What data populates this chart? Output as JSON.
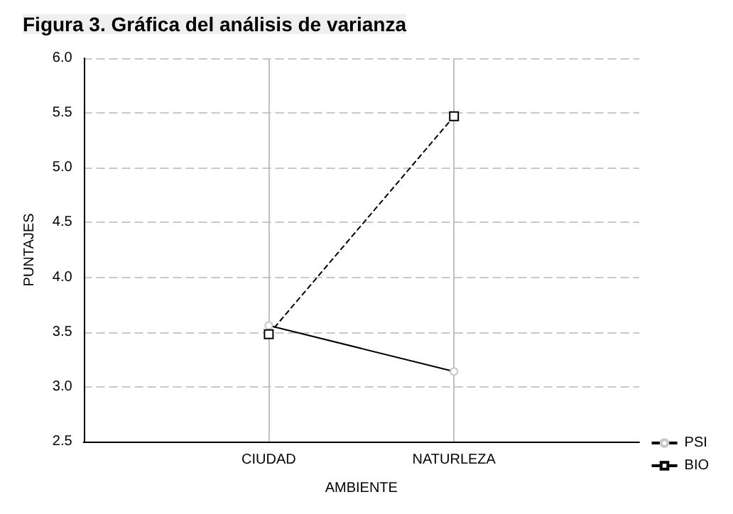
{
  "chart_data": {
    "type": "line",
    "title": "Figura 3. Gráfica del análisis de varianza",
    "xlabel": "AMBIENTE",
    "ylabel": "PUNTAJES",
    "categories": [
      "CIUDAD",
      "NATURLEZA"
    ],
    "series": [
      {
        "name": "PSI",
        "color": "#000000",
        "values": [
          3.56,
          3.14
        ],
        "marker": "circle",
        "line_style": "solid"
      },
      {
        "name": "BIO",
        "color": "#000000",
        "values": [
          3.48,
          5.47
        ],
        "marker": "square",
        "line_style": "dashed"
      }
    ],
    "ylim": [
      2.5,
      6.0
    ],
    "yticks": [
      {
        "value": 2.5,
        "label": "2.5"
      },
      {
        "value": 3,
        "label": "3.0"
      },
      {
        "value": 3.5,
        "label": "3.5"
      },
      {
        "value": 4,
        "label": "4.0"
      },
      {
        "value": 4.5,
        "label": "4.5"
      },
      {
        "value": 5,
        "label": "5.0"
      },
      {
        "value": 5.5,
        "label": "5.5"
      },
      {
        "value": 6,
        "label": "6.0"
      }
    ],
    "grid": true,
    "legend": "bottom right"
  }
}
